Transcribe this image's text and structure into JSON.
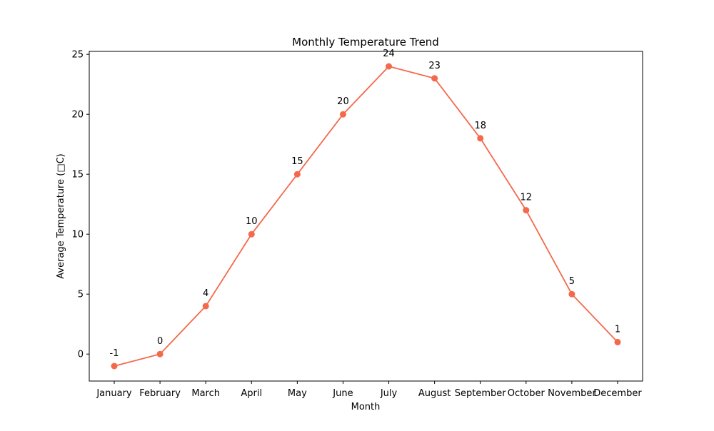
{
  "chart_data": {
    "type": "line",
    "title": "Monthly Temperature Trend",
    "xlabel": "Month",
    "ylabel": "Average Temperature (□C)",
    "categories": [
      "January",
      "February",
      "March",
      "April",
      "May",
      "June",
      "July",
      "August",
      "September",
      "October",
      "November",
      "December"
    ],
    "series": [
      {
        "values": [
          -1,
          0,
          4,
          10,
          15,
          20,
          24,
          23,
          18,
          12,
          5,
          1
        ]
      }
    ],
    "data_labels": [
      "-1",
      "0",
      "4",
      "10",
      "15",
      "20",
      "24",
      "23",
      "18",
      "12",
      "5",
      "1"
    ],
    "yticks": [
      0,
      5,
      10,
      15,
      20,
      25
    ],
    "ytick_labels": [
      "0",
      "5",
      "10",
      "15",
      "20",
      "25"
    ],
    "ylim": [
      -2.25,
      25.25
    ],
    "grid": false,
    "colors": {
      "line": "#f4694b",
      "marker": "#f4694b",
      "axes": "#000000"
    }
  }
}
